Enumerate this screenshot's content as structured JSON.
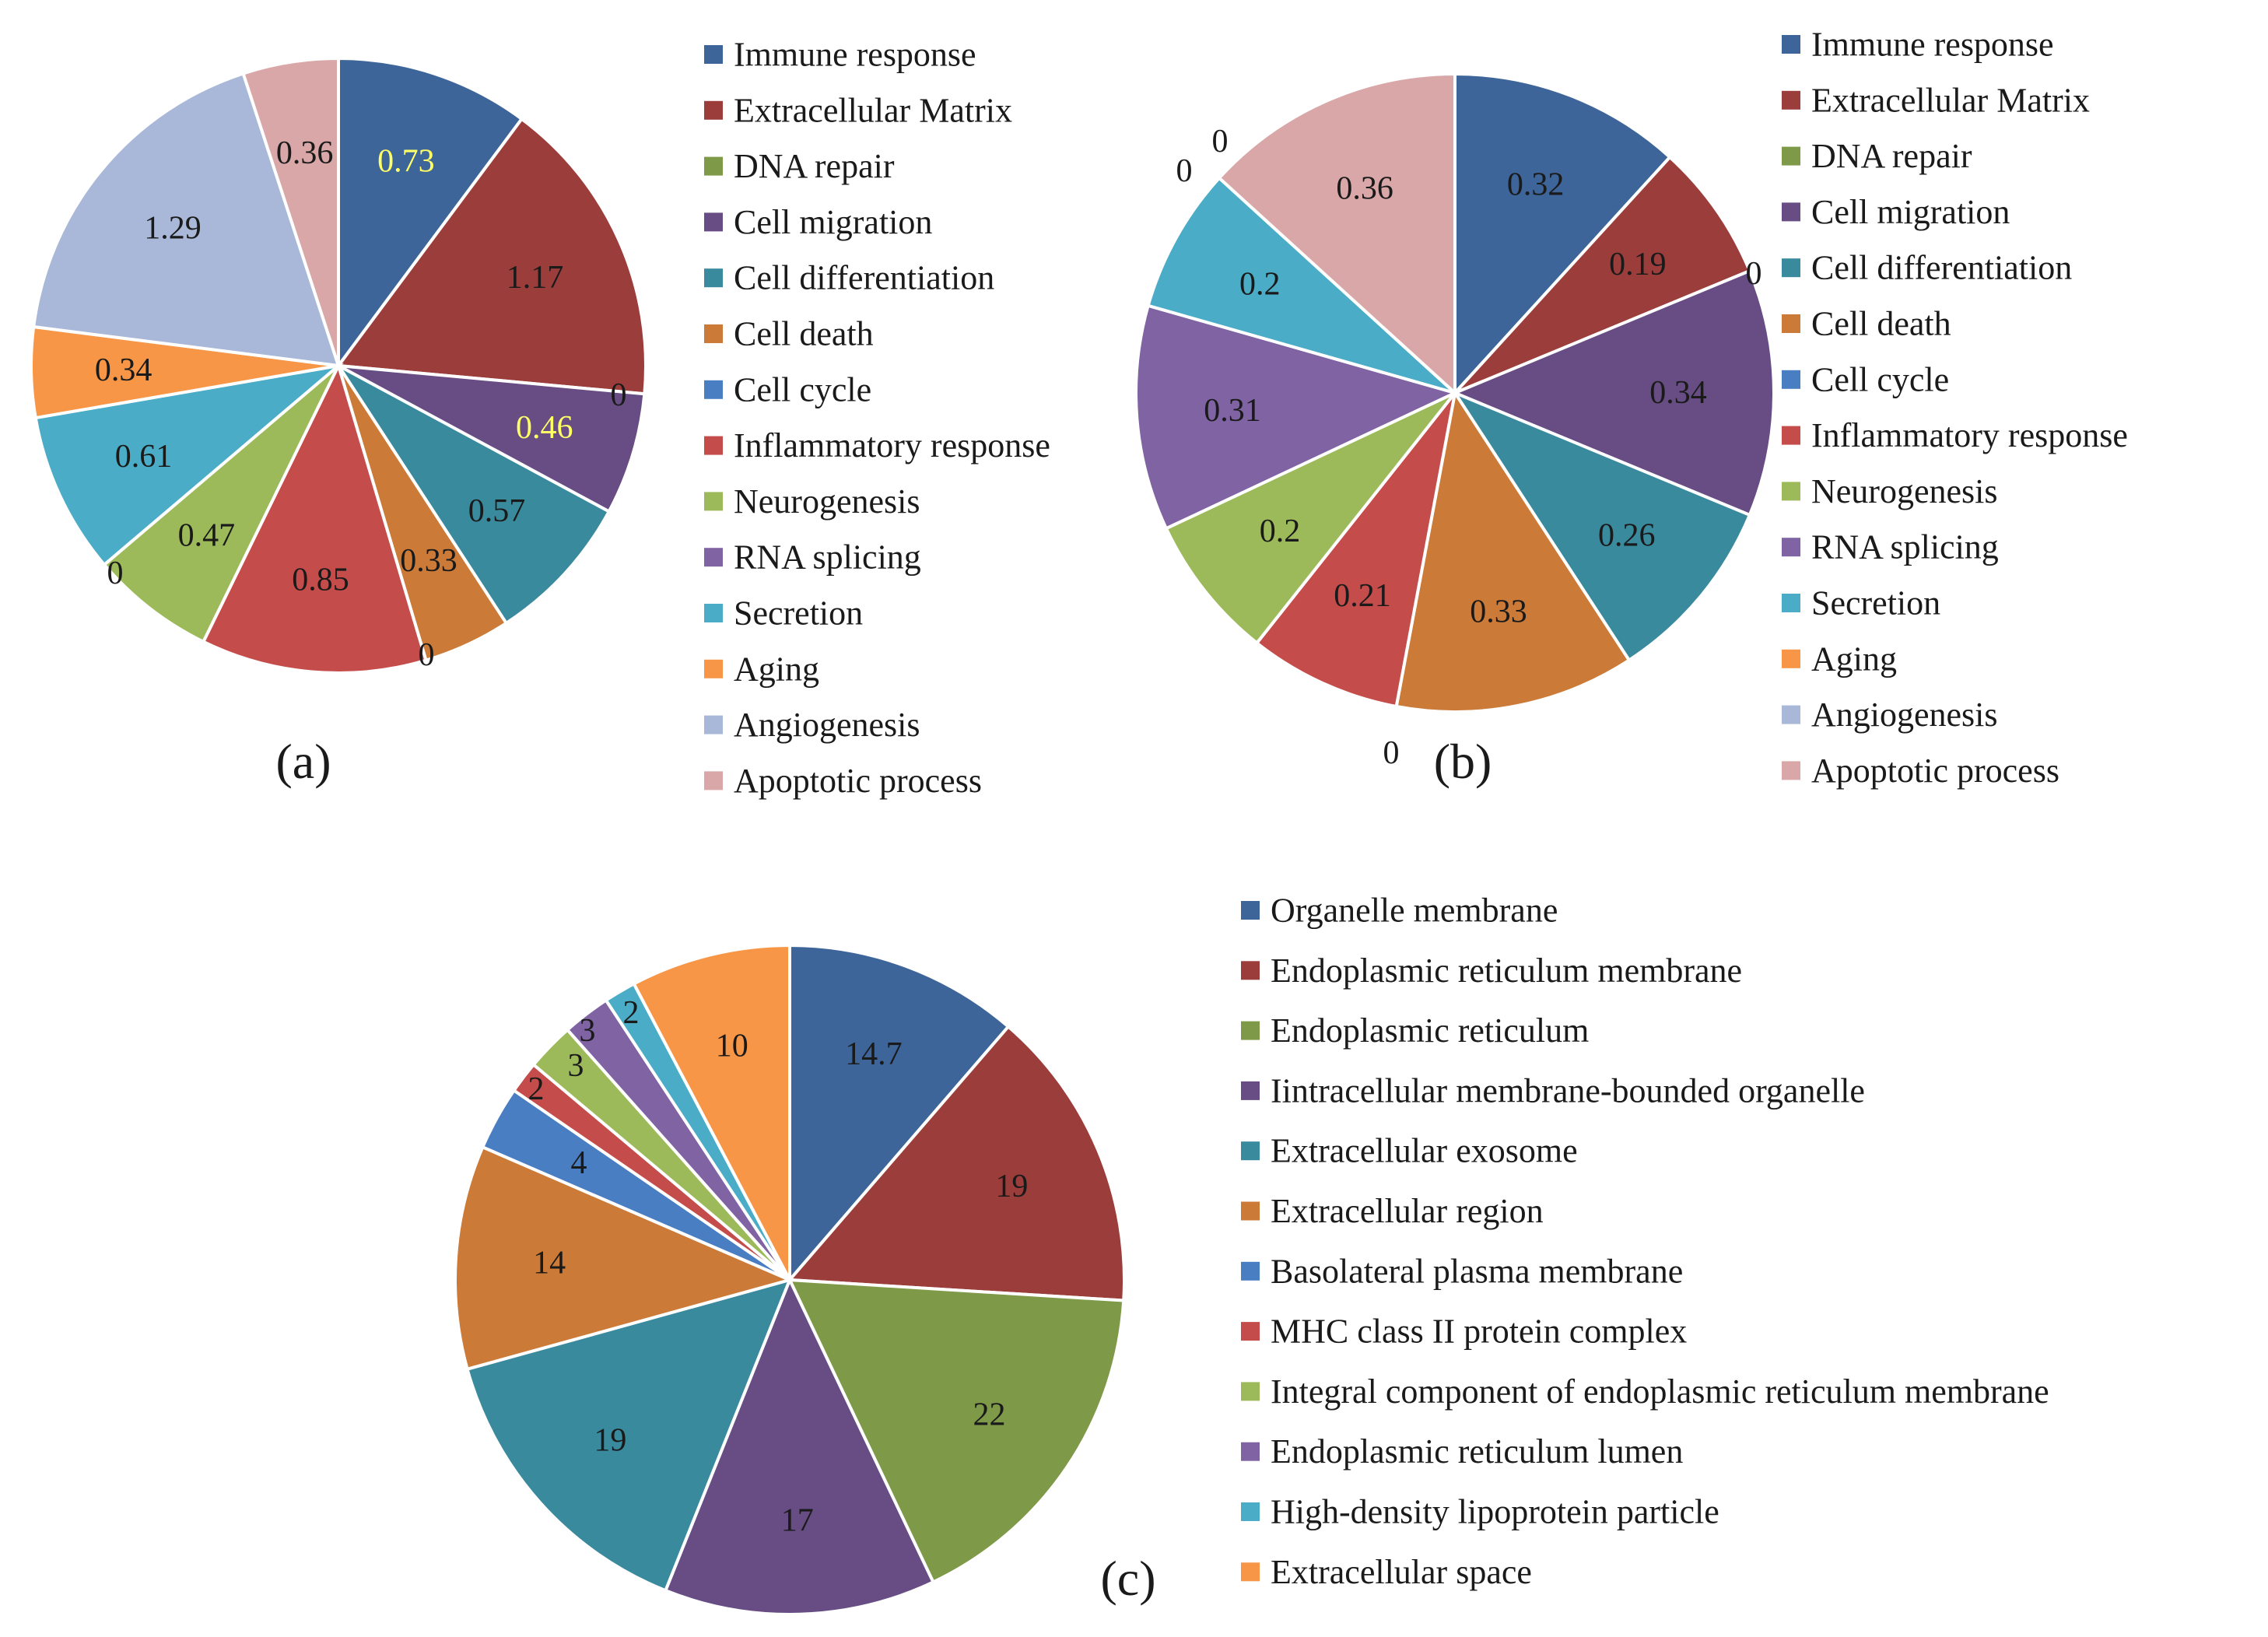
{
  "chart_data": [
    {
      "type": "pie",
      "panel_label": "(a)",
      "categories": [
        "Immune response",
        "Extracellular Matrix",
        "DNA repair",
        "Cell migration",
        "Cell differentiation",
        "Cell death",
        "Cell cycle",
        "Inflammatory response",
        "Neurogenesis",
        "RNA splicing",
        "Secretion",
        "Aging",
        "Angiogenesis",
        "Apoptotic process"
      ],
      "values": [
        0.73,
        1.17,
        0,
        0.46,
        0.57,
        0.33,
        0,
        0.85,
        0.47,
        0,
        0.61,
        0.34,
        1.29,
        0.36
      ],
      "labels": [
        "0.73",
        "1.17",
        "0",
        "0.46",
        "0.57",
        "0.33",
        "0",
        "0.85",
        "0.47",
        "0",
        "0.61",
        "0.34",
        "1.29",
        "0.36"
      ],
      "colors": [
        "#3d6599",
        "#9b3d3b",
        "#7e9a48",
        "#674d84",
        "#3a8a9e",
        "#cb7a37",
        "#4a7ec2",
        "#c44c4a",
        "#9dba5a",
        "#7f63a3",
        "#4aacc6",
        "#f79646",
        "#a9b8d8",
        "#d9a7a8"
      ],
      "label_colors": [
        "#ffff66",
        "#1a1a1a",
        "#1a1a1a",
        "#ffff66",
        "#1a1a1a",
        "#1a1a1a",
        "#1a1a1a",
        "#1a1a1a",
        "#1a1a1a",
        "#1a1a1a",
        "#1a1a1a",
        "#1a1a1a",
        "#1a1a1a",
        "#1a1a1a"
      ]
    },
    {
      "type": "pie",
      "panel_label": "(b)",
      "categories": [
        "Immune response",
        "Extracellular Matrix",
        "DNA repair",
        "Cell migration",
        "Cell differentiation",
        "Cell death",
        "Cell cycle",
        "Inflammatory response",
        "Neurogenesis",
        "RNA splicing",
        "Secretion",
        "Aging",
        "Angiogenesis",
        "Apoptotic process"
      ],
      "values": [
        0.32,
        0.19,
        0,
        0.34,
        0.26,
        0.33,
        0,
        0.21,
        0.2,
        0.31,
        0.2,
        0,
        0,
        0.36
      ],
      "labels": [
        "0.32",
        "0.19",
        "0",
        "0.34",
        "0.26",
        "0.33",
        "0",
        "0.21",
        "0.2",
        "0.31",
        "0.2",
        "0",
        "0",
        "0.36"
      ],
      "colors": [
        "#3d6599",
        "#9b3d3b",
        "#7e9a48",
        "#674d84",
        "#3a8a9e",
        "#cb7a37",
        "#4a7ec2",
        "#c44c4a",
        "#9dba5a",
        "#7f63a3",
        "#4aacc6",
        "#f79646",
        "#a9b8d8",
        "#d9a7a8"
      ],
      "label_colors": [
        "#1a1a1a",
        "#1a1a1a",
        "#1a1a1a",
        "#1a1a1a",
        "#1a1a1a",
        "#1a1a1a",
        "#1a1a1a",
        "#1a1a1a",
        "#1a1a1a",
        "#1a1a1a",
        "#1a1a1a",
        "#1a1a1a",
        "#1a1a1a",
        "#1a1a1a"
      ]
    },
    {
      "type": "pie",
      "panel_label": "(c)",
      "categories": [
        "Organelle membrane",
        "Endoplasmic reticulum membrane",
        "Endoplasmic reticulum",
        "Iintracellular membrane-bounded organelle",
        "Extracellular exosome",
        "Extracellular region",
        "Basolateral plasma membrane",
        "MHC class II protein complex",
        "Integral component of endoplasmic reticulum membrane",
        "Endoplasmic reticulum lumen",
        "High-density lipoprotein particle",
        "Extracellular space"
      ],
      "values": [
        14.7,
        19,
        22,
        17,
        19,
        14,
        4,
        2,
        3,
        3,
        2,
        10
      ],
      "labels": [
        "14.7",
        "19",
        "22",
        "17",
        "19",
        "14",
        "4",
        "2",
        "3",
        "3",
        "2",
        "10"
      ],
      "colors": [
        "#3d6599",
        "#9b3d3b",
        "#7e9a48",
        "#674d84",
        "#3a8a9e",
        "#cb7a37",
        "#4a7ec2",
        "#c44c4a",
        "#9dba5a",
        "#7f63a3",
        "#4aacc6",
        "#f79646"
      ],
      "label_colors": [
        "#1a1a1a",
        "#1a1a1a",
        "#1a1a1a",
        "#1a1a1a",
        "#1a1a1a",
        "#1a1a1a",
        "#1a1a1a",
        "#1a1a1a",
        "#1a1a1a",
        "#1a1a1a",
        "#1a1a1a",
        "#1a1a1a"
      ]
    }
  ]
}
